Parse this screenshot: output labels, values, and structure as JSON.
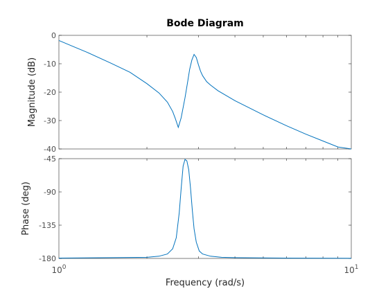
{
  "chart_data": [
    {
      "type": "line",
      "title": "Bode Diagram",
      "xlabel": "Frequency  (rad/s)",
      "ylabel": "Magnitude (dB)",
      "xscale": "log",
      "xlim": [
        1,
        10
      ],
      "ylim": [
        -40,
        0
      ],
      "yticks": [
        "0",
        "-10",
        "-20",
        "-30",
        "-40"
      ],
      "grid": false,
      "color": "#0072bd",
      "series": [
        {
          "x": [
            1,
            1.1,
            1.25,
            1.5,
            1.75,
            2.0,
            2.2,
            2.35,
            2.45,
            2.5,
            2.56,
            2.62,
            2.7,
            2.76,
            2.8,
            2.85,
            2.9,
            2.95,
            3.0,
            3.05,
            3.1,
            3.2,
            3.3,
            3.5,
            4.0,
            5.0,
            6.0,
            7.0,
            8.0,
            9.0,
            10.0
          ],
          "y": [
            -1.8,
            -3.6,
            -6.0,
            -9.7,
            -13.0,
            -17.0,
            -20.3,
            -23.5,
            -26.8,
            -29.2,
            -32.4,
            -29.0,
            -22.0,
            -16.0,
            -12.0,
            -8.7,
            -6.7,
            -7.8,
            -10.3,
            -12.6,
            -14.2,
            -16.3,
            -17.5,
            -19.5,
            -23.0,
            -28.0,
            -31.8,
            -34.8,
            -37.2,
            -39.3,
            -40.0
          ]
        }
      ]
    },
    {
      "type": "line",
      "xlabel": "Frequency  (rad/s)",
      "ylabel": "Phase (deg)",
      "xscale": "log",
      "xlim": [
        1,
        10
      ],
      "ylim": [
        -180,
        -45
      ],
      "yticks": [
        "-45",
        "-90",
        "-135",
        "-180"
      ],
      "xticks": [
        {
          "base": "10",
          "exp": "0"
        },
        {
          "base": "10",
          "exp": "1"
        }
      ],
      "grid": false,
      "color": "#0072bd",
      "series": [
        {
          "x": [
            1,
            1.5,
            2.0,
            2.2,
            2.35,
            2.45,
            2.52,
            2.58,
            2.62,
            2.66,
            2.7,
            2.74,
            2.78,
            2.82,
            2.86,
            2.9,
            2.95,
            3.02,
            3.1,
            3.3,
            3.6,
            4.0,
            6.0,
            10.0
          ],
          "y": [
            -179.5,
            -179.0,
            -178.5,
            -177.0,
            -174.0,
            -167.0,
            -152.0,
            -118.0,
            -85.0,
            -55.0,
            -46.0,
            -48.0,
            -60.0,
            -85.0,
            -115.0,
            -140.0,
            -158.0,
            -170.0,
            -174.0,
            -177.0,
            -178.5,
            -179.0,
            -179.5,
            -179.8
          ]
        }
      ]
    }
  ]
}
